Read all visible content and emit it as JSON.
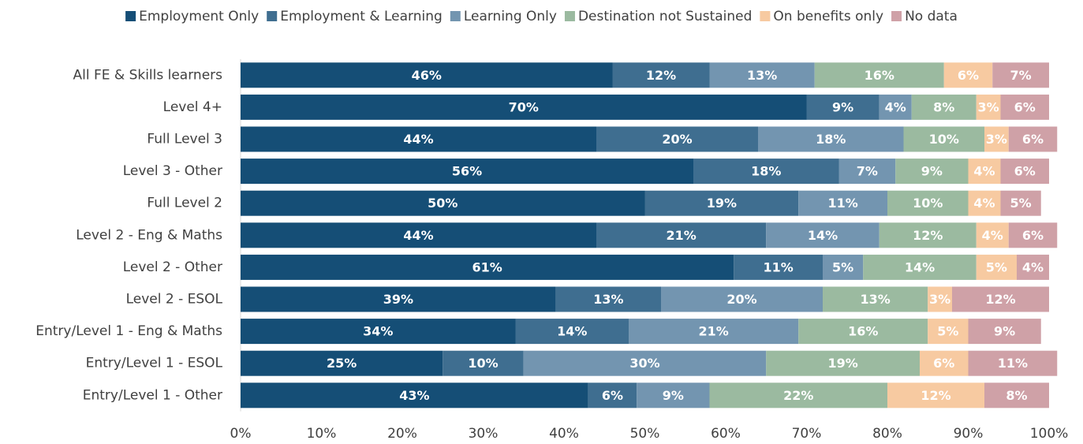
{
  "chart_data": {
    "type": "stacked-barh",
    "categories": [
      "All FE & Skills learners",
      "Level 4+",
      "Full Level 3",
      "Level 3 - Other",
      "Full Level 2",
      "Level 2 - Eng & Maths",
      "Level 2 - Other",
      "Level 2 - ESOL",
      "Entry/Level 1 - Eng & Maths",
      "Entry/Level 1 - ESOL",
      "Entry/Level 1 - Other"
    ],
    "series": [
      {
        "name": "Employment Only",
        "color": "#154e76",
        "values": [
          46,
          70,
          44,
          56,
          50,
          44,
          61,
          39,
          34,
          25,
          43
        ],
        "value_labels": [
          "46%",
          "70%",
          "44%",
          "56%",
          "50%",
          "44%",
          "61%",
          "39%",
          "34%",
          "25%",
          "43%"
        ]
      },
      {
        "name": "Employment & Learning",
        "color": "#3f6e90",
        "values": [
          12,
          9,
          20,
          18,
          19,
          21,
          11,
          13,
          14,
          10,
          6
        ],
        "value_labels": [
          "12%",
          "9%",
          "20%",
          "18%",
          "19%",
          "21%",
          "11%",
          "13%",
          "14%",
          "10%",
          "6%"
        ]
      },
      {
        "name": "Learning Only",
        "color": "#7395b0",
        "values": [
          13,
          4,
          18,
          7,
          11,
          14,
          5,
          20,
          21,
          30,
          9
        ],
        "value_labels": [
          "13%",
          "4%",
          "18%",
          "7%",
          "11%",
          "14%",
          "5%",
          "20%",
          "21%",
          "30%",
          "9%"
        ]
      },
      {
        "name": "Destination not Sustained",
        "color": "#9bbaa0",
        "values": [
          16,
          8,
          10,
          9,
          10,
          12,
          14,
          13,
          16,
          19,
          22
        ],
        "value_labels": [
          "16%",
          "8%",
          "10%",
          "9%",
          "10%",
          "12%",
          "14%",
          "13%",
          "16%",
          "19%",
          "22%"
        ]
      },
      {
        "name": "On benefits only",
        "color": "#f7caa1",
        "values": [
          6,
          3,
          3,
          4,
          4,
          4,
          5,
          3,
          5,
          6,
          12
        ],
        "value_labels": [
          "6%",
          "3%",
          "3%",
          "4%",
          "4%",
          "4%",
          "5%",
          "3%",
          "5%",
          "6%",
          "12%"
        ]
      },
      {
        "name": "No data",
        "color": "#cfa1a7",
        "values": [
          7,
          6,
          6,
          6,
          5,
          6,
          4,
          12,
          9,
          11,
          8
        ],
        "value_labels": [
          "7%",
          "6%",
          "6%",
          "6%",
          "5%",
          "6%",
          "4%",
          "12%",
          "9%",
          "11%",
          "8%"
        ]
      }
    ],
    "xlim": [
      0,
      100
    ],
    "xticks": [
      {
        "value": 0,
        "label": "0%"
      },
      {
        "value": 10,
        "label": "10%"
      },
      {
        "value": 20,
        "label": "20%"
      },
      {
        "value": 30,
        "label": "30%"
      },
      {
        "value": 40,
        "label": "40%"
      },
      {
        "value": 50,
        "label": "50%"
      },
      {
        "value": 60,
        "label": "60%"
      },
      {
        "value": 70,
        "label": "70%"
      },
      {
        "value": 80,
        "label": "80%"
      },
      {
        "value": 90,
        "label": "90%"
      },
      {
        "value": 100,
        "label": "100%"
      }
    ],
    "legend": "top"
  }
}
